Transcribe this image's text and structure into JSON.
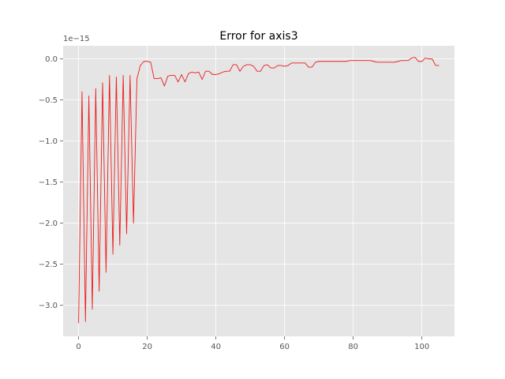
{
  "chart_data": {
    "type": "line",
    "title": "Error for axis3",
    "xlabel": "",
    "ylabel": "",
    "y_offset_label": "1e−15",
    "xlim": [
      -4.5,
      109.5
    ],
    "ylim": [
      -3.38,
      0.16
    ],
    "x_ticks": [
      0,
      20,
      40,
      60,
      80,
      100
    ],
    "x_tick_labels": [
      "0",
      "20",
      "40",
      "60",
      "80",
      "100"
    ],
    "y_ticks": [
      0.0,
      -0.5,
      -1.0,
      -1.5,
      -2.0,
      -2.5,
      -3.0
    ],
    "y_tick_labels": [
      "0.0",
      "−0.5",
      "−1.0",
      "−1.5",
      "−2.0",
      "−2.5",
      "−3.0"
    ],
    "grid": true,
    "colors": {
      "background": "#e5e5e5",
      "grid": "#ffffff",
      "line": "#ee1b1b",
      "axis_text": "#555555"
    },
    "series": [
      {
        "x": [
          0,
          1,
          2,
          3,
          4,
          5,
          6,
          7,
          8,
          9,
          10,
          11,
          12,
          13,
          14,
          15,
          16,
          17,
          18,
          19,
          20,
          21,
          22,
          23,
          24,
          25,
          26,
          27,
          28,
          29,
          30,
          31,
          32,
          33,
          34,
          35,
          36,
          37,
          38,
          39,
          40,
          41,
          42,
          43,
          44,
          45,
          46,
          47,
          48,
          49,
          50,
          51,
          52,
          53,
          54,
          55,
          56,
          57,
          58,
          59,
          60,
          61,
          62,
          63,
          64,
          65,
          66,
          67,
          68,
          69,
          70,
          71,
          72,
          73,
          74,
          75,
          76,
          77,
          78,
          79,
          80,
          81,
          82,
          83,
          84,
          85,
          86,
          87,
          88,
          89,
          90,
          91,
          92,
          93,
          94,
          95,
          96,
          97,
          98,
          99,
          100,
          101,
          102,
          103,
          104,
          105
        ],
        "values": [
          -3.22,
          -0.4,
          -3.2,
          -0.45,
          -3.05,
          -0.36,
          -2.83,
          -0.29,
          -2.6,
          -0.2,
          -2.38,
          -0.22,
          -2.27,
          -0.2,
          -2.13,
          -0.2,
          -2.0,
          -0.24,
          -0.08,
          -0.03,
          -0.03,
          -0.04,
          -0.24,
          -0.24,
          -0.23,
          -0.33,
          -0.21,
          -0.2,
          -0.2,
          -0.28,
          -0.19,
          -0.28,
          -0.18,
          -0.16,
          -0.17,
          -0.16,
          -0.25,
          -0.15,
          -0.15,
          -0.19,
          -0.19,
          -0.18,
          -0.16,
          -0.15,
          -0.15,
          -0.07,
          -0.07,
          -0.15,
          -0.09,
          -0.07,
          -0.07,
          -0.09,
          -0.15,
          -0.15,
          -0.08,
          -0.07,
          -0.11,
          -0.11,
          -0.08,
          -0.08,
          -0.09,
          -0.08,
          -0.05,
          -0.05,
          -0.05,
          -0.05,
          -0.05,
          -0.1,
          -0.1,
          -0.04,
          -0.03,
          -0.03,
          -0.03,
          -0.03,
          -0.03,
          -0.03,
          -0.03,
          -0.03,
          -0.03,
          -0.02,
          -0.02,
          -0.02,
          -0.02,
          -0.02,
          -0.02,
          -0.02,
          -0.03,
          -0.04,
          -0.04,
          -0.04,
          -0.04,
          -0.04,
          -0.04,
          -0.03,
          -0.02,
          -0.02,
          -0.02,
          0.01,
          0.02,
          -0.03,
          -0.03,
          0.01,
          0.0,
          0.0,
          -0.08,
          -0.08
        ]
      }
    ]
  }
}
